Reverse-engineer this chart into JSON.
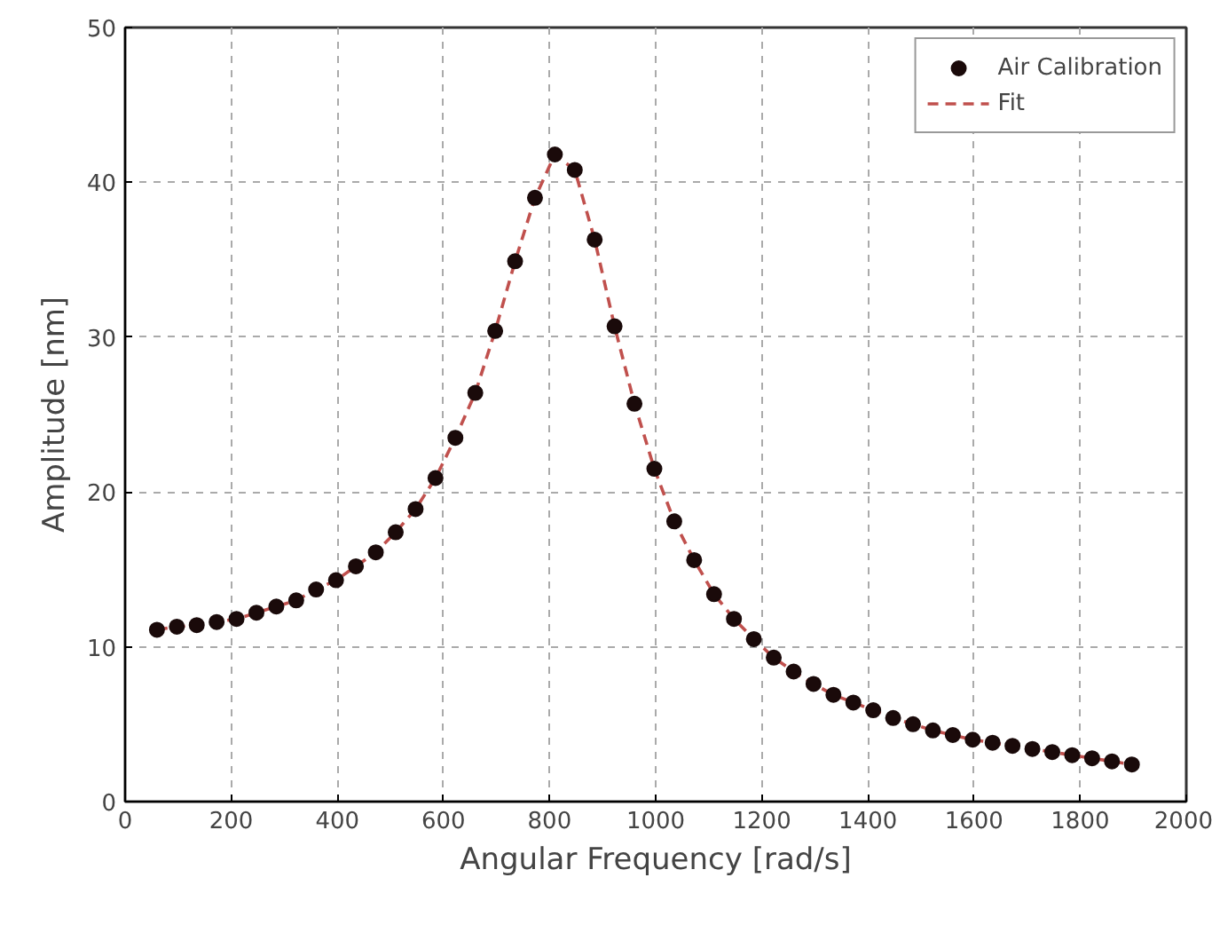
{
  "chart_data": {
    "type": "scatter",
    "xlabel": "Angular Frequency [rad/s]",
    "ylabel": "Amplitude [nm]",
    "x": [
      60,
      97.5,
      135,
      172.5,
      210,
      247.5,
      285,
      322.5,
      360,
      397.5,
      435,
      472.5,
      510,
      547.5,
      585,
      622.5,
      660,
      697.5,
      735,
      772.5,
      810,
      847.5,
      885,
      922.5,
      960,
      997.5,
      1035,
      1072.5,
      1110,
      1147.5,
      1185,
      1222.5,
      1260,
      1297.5,
      1335,
      1372.5,
      1410,
      1447.5,
      1485,
      1522.5,
      1560,
      1597.5,
      1635,
      1672.5,
      1710,
      1747.5,
      1785,
      1822.5,
      1860,
      1897.5
    ],
    "series": [
      {
        "name": "Air Calibration",
        "marker": "circle",
        "color": "#1a0a0a",
        "values": [
          11.1,
          11.3,
          11.4,
          11.6,
          11.8,
          12.2,
          12.6,
          13.0,
          13.7,
          14.3,
          15.2,
          16.1,
          17.4,
          18.9,
          20.9,
          23.5,
          26.4,
          30.4,
          34.9,
          39.0,
          41.8,
          40.8,
          36.3,
          30.7,
          25.7,
          21.5,
          18.1,
          15.6,
          13.4,
          11.8,
          10.5,
          9.3,
          8.4,
          7.6,
          6.9,
          6.4,
          5.9,
          5.4,
          5.0,
          4.6,
          4.3,
          4.0,
          3.8,
          3.6,
          3.4,
          3.2,
          3.0,
          2.8,
          2.6,
          2.4
        ]
      },
      {
        "name": "Fit",
        "type": "line",
        "line_style": "dashed",
        "color": "#c0504d",
        "values": [
          11.1,
          11.3,
          11.4,
          11.6,
          11.8,
          12.2,
          12.6,
          13.0,
          13.7,
          14.3,
          15.2,
          16.1,
          17.4,
          18.9,
          20.9,
          23.5,
          26.4,
          30.4,
          34.9,
          39.0,
          41.8,
          40.8,
          36.3,
          30.7,
          25.7,
          21.5,
          18.1,
          15.6,
          13.4,
          11.8,
          10.5,
          9.3,
          8.4,
          7.6,
          6.9,
          6.4,
          5.9,
          5.4,
          5.0,
          4.6,
          4.3,
          4.0,
          3.8,
          3.6,
          3.4,
          3.2,
          3.0,
          2.8,
          2.6,
          2.4
        ]
      }
    ],
    "xlim": [
      0,
      2000
    ],
    "xticks": [
      0,
      200,
      400,
      600,
      800,
      1000,
      1200,
      1400,
      1600,
      1800,
      2000
    ],
    "ylim": [
      0,
      50
    ],
    "yticks": [
      0,
      10,
      20,
      30,
      40,
      50
    ],
    "grid": true,
    "legend": "top right"
  }
}
